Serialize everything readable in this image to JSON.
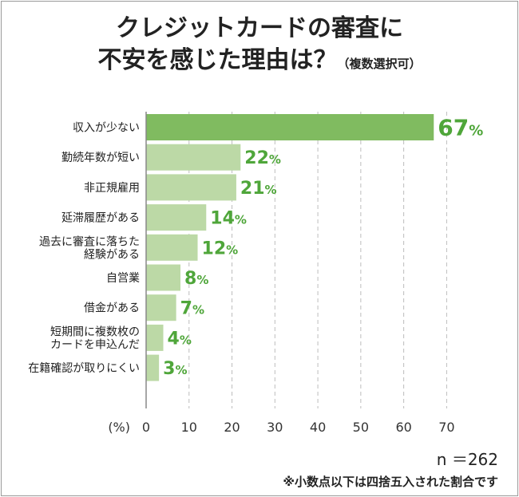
{
  "title": {
    "line1": "クレジットカードの審査に",
    "line2": "不安を感じた理由は？",
    "line2_sub": "（複数選択可）"
  },
  "footer": {
    "sample_size": "n ＝262",
    "note": "※小数点以下は四捨五入された割合です"
  },
  "colors": {
    "highlight_bar": "#80bb60",
    "normal_bar": "#bcd9a6",
    "value_text": "#4fa63a",
    "grid": "#bdbdbd"
  },
  "chart_data": {
    "type": "bar",
    "orientation": "horizontal",
    "categories": [
      "収入が少ない",
      "勤続年数が短い",
      "非正規雇用",
      "延滞履歴がある",
      "過去に審査に落ちた\n経験がある",
      "自営業",
      "借金がある",
      "短期間に複数枚の\nカードを申込んだ",
      "在籍確認が取りにくい"
    ],
    "values": [
      67,
      22,
      21,
      14,
      12,
      8,
      7,
      4,
      3
    ],
    "value_suffix": "%",
    "xlabel": "(%)",
    "xlim": [
      0,
      70
    ],
    "xticks": [
      0,
      10,
      20,
      30,
      40,
      50,
      60,
      70
    ],
    "grid": "vertical-dashed"
  }
}
